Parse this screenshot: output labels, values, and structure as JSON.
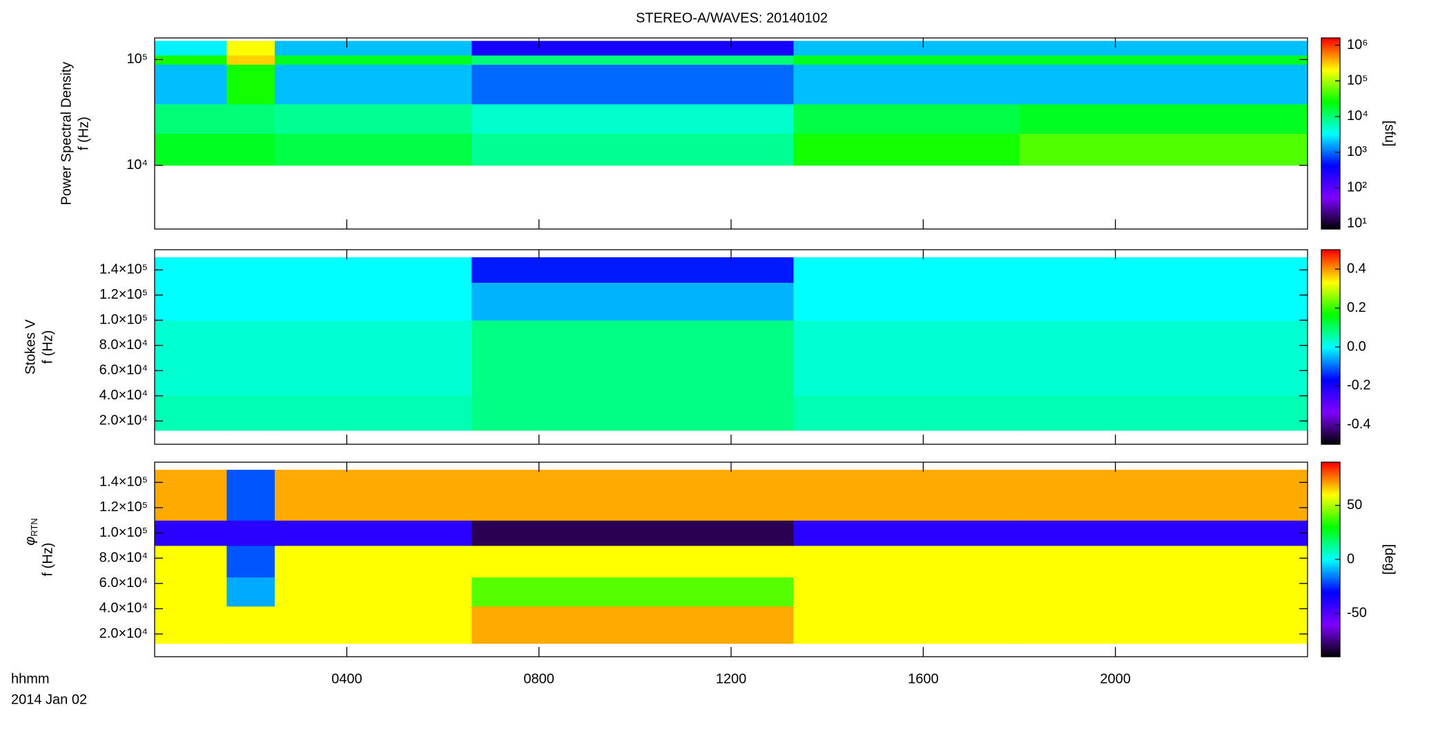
{
  "chart_data": [
    {
      "type": "heatmap",
      "title": "STEREO-A/WAVES: 20140102",
      "ylabel": [
        "Power Spectral Density",
        "f (Hz)"
      ],
      "xlim": [
        0,
        24
      ],
      "ylog": true,
      "ylim": [
        2500,
        160000
      ],
      "yticks": [
        {
          "value": 10000,
          "label": "10⁴"
        },
        {
          "value": 100000,
          "label": "10⁵"
        }
      ],
      "xbins": [
        0,
        1.5,
        2.5,
        6.6,
        13.3,
        18,
        24
      ],
      "ybins": [
        10000,
        20000,
        38000,
        90000,
        110000,
        150000
      ],
      "values": [
        [
          20000,
          20000,
          15000,
          8000,
          30000,
          50000
        ],
        [
          10000,
          10000,
          8000,
          5000,
          15000,
          20000
        ],
        [
          2000,
          30000,
          2000,
          1000,
          2000,
          2000
        ],
        [
          30000,
          300000,
          20000,
          10000,
          20000,
          20000
        ],
        [
          3000,
          200000,
          2000,
          300,
          2000,
          2000
        ]
      ],
      "clog": true,
      "clim": [
        7,
        1600000
      ],
      "cticks": [
        {
          "value": 10,
          "label": "10¹"
        },
        {
          "value": 100,
          "label": "10²"
        },
        {
          "value": 1000,
          "label": "10³"
        },
        {
          "value": 10000,
          "label": "10⁴"
        },
        {
          "value": 100000,
          "label": "10⁵"
        },
        {
          "value": 1000000,
          "label": "10⁶"
        }
      ],
      "clabel": "[sfu]",
      "colormap": [
        "#000000",
        "#7f00ff",
        "#0000ff",
        "#00ffff",
        "#00ff00",
        "#ffff00",
        "#ff0000"
      ]
    },
    {
      "type": "heatmap",
      "ylabel": [
        "Stokes V",
        "f (Hz)"
      ],
      "xlim": [
        0,
        24
      ],
      "ylog": false,
      "ylim": [
        1500,
        156000
      ],
      "yticks": [
        {
          "value": 20000,
          "label": "2.0×10⁴"
        },
        {
          "value": 40000,
          "label": "4.0×10⁴"
        },
        {
          "value": 60000,
          "label": "6.0×10⁴"
        },
        {
          "value": 80000,
          "label": "8.0×10⁴"
        },
        {
          "value": 100000,
          "label": "1.0×10⁵"
        },
        {
          "value": 120000,
          "label": "1.2×10⁵"
        },
        {
          "value": 140000,
          "label": "1.4×10⁵"
        }
      ],
      "xbins": [
        0,
        1.5,
        2.5,
        6.6,
        13.3,
        18,
        24
      ],
      "ybins": [
        12500,
        40000,
        100000,
        130000,
        150000
      ],
      "values": [
        [
          0.05,
          0.05,
          0.05,
          0.08,
          0.05,
          0.05
        ],
        [
          0.03,
          0.03,
          0.03,
          0.08,
          0.03,
          0.03
        ],
        [
          0,
          0,
          0,
          -0.05,
          0,
          0
        ],
        [
          0,
          0,
          0,
          -0.15,
          0,
          0
        ]
      ],
      "clog": false,
      "clim": [
        -0.5,
        0.5
      ],
      "cticks": [
        -0.4,
        -0.2,
        {
          "value": 0,
          "label": "0.0"
        },
        0.2,
        0.4
      ],
      "colormap": [
        "#000000",
        "#7f00ff",
        "#0000ff",
        "#00ffff",
        "#00ff00",
        "#ffff00",
        "#ff0000"
      ]
    },
    {
      "type": "heatmap",
      "ylabel_symbol": "φ",
      "ylabel_subscript": "RTN",
      "ylabel": [
        "f (Hz)"
      ],
      "xlim": [
        0,
        24
      ],
      "ylog": false,
      "ylim": [
        2000,
        156000
      ],
      "yticks": [
        {
          "value": 20000,
          "label": "2.0×10⁴"
        },
        {
          "value": 40000,
          "label": "4.0×10⁴"
        },
        {
          "value": 60000,
          "label": "6.0×10⁴"
        },
        {
          "value": 80000,
          "label": "8.0×10⁴"
        },
        {
          "value": 100000,
          "label": "1.0×10⁵"
        },
        {
          "value": 120000,
          "label": "1.2×10⁵"
        },
        {
          "value": 140000,
          "label": "1.4×10⁵"
        }
      ],
      "xticks": [
        {
          "value": 4,
          "label": "0400"
        },
        {
          "value": 8,
          "label": "0800"
        },
        {
          "value": 12,
          "label": "1200"
        },
        {
          "value": 16,
          "label": "1600"
        },
        {
          "value": 20,
          "label": "2000"
        }
      ],
      "xlabel": "hhmm",
      "date": "2014 Jan 02",
      "xbins": [
        0,
        1.5,
        2.5,
        6.6,
        13.3,
        18,
        24
      ],
      "ybins": [
        12500,
        42000,
        65000,
        90000,
        110000,
        150000
      ],
      "values": [
        [
          60,
          60,
          60,
          70,
          60,
          60
        ],
        [
          60,
          -10,
          60,
          40,
          60,
          60
        ],
        [
          60,
          -20,
          60,
          60,
          60,
          60
        ],
        [
          -40,
          -40,
          -40,
          -80,
          -40,
          -40
        ],
        [
          70,
          -20,
          70,
          70,
          70,
          70
        ]
      ],
      "clog": false,
      "clim": [
        -90,
        90
      ],
      "cticks": [
        -50,
        0,
        50
      ],
      "clabel": "[deg]",
      "colormap": [
        "#000000",
        "#7f00ff",
        "#0000ff",
        "#00ffff",
        "#00ff00",
        "#ffff00",
        "#ff0000"
      ]
    }
  ]
}
